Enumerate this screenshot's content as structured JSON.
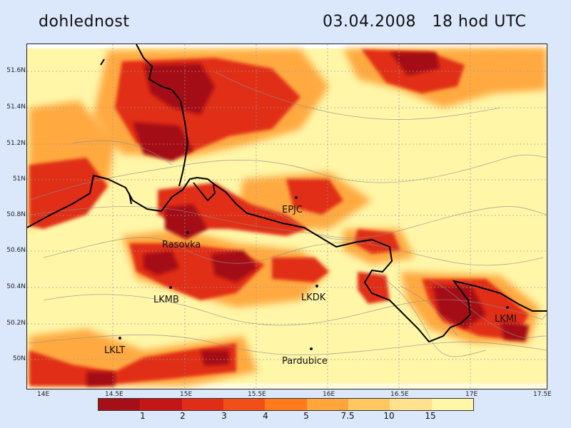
{
  "header": {
    "left_title": "dohlednost",
    "right_title": "03.04.2008   18 hod UTC"
  },
  "axes": {
    "y_ticks": [
      "51.6N",
      "51.4N",
      "51.2N",
      "51N",
      "50.8N",
      "50.6N",
      "50.4N",
      "50.2N",
      "50N"
    ],
    "x_ticks": [
      "14E",
      "14.5E",
      "15E",
      "15.5E",
      "16E",
      "16.5E",
      "17E",
      "17.5E"
    ]
  },
  "locations": [
    {
      "name": "EPJC"
    },
    {
      "name": "Rasovka"
    },
    {
      "name": "LKMB"
    },
    {
      "name": "LKDK"
    },
    {
      "name": "LKMI"
    },
    {
      "name": "LKLT"
    },
    {
      "name": "Pardubice"
    }
  ],
  "colorbar": {
    "colors": [
      "#a50f15",
      "#c41616",
      "#e12d17",
      "#f24e17",
      "#ff7a1a",
      "#ffa53a",
      "#ffc760",
      "#ffe190",
      "#fff6a8"
    ],
    "labels": [
      "1",
      "2",
      "3",
      "4",
      "5",
      "7.5",
      "10",
      "15"
    ]
  }
}
